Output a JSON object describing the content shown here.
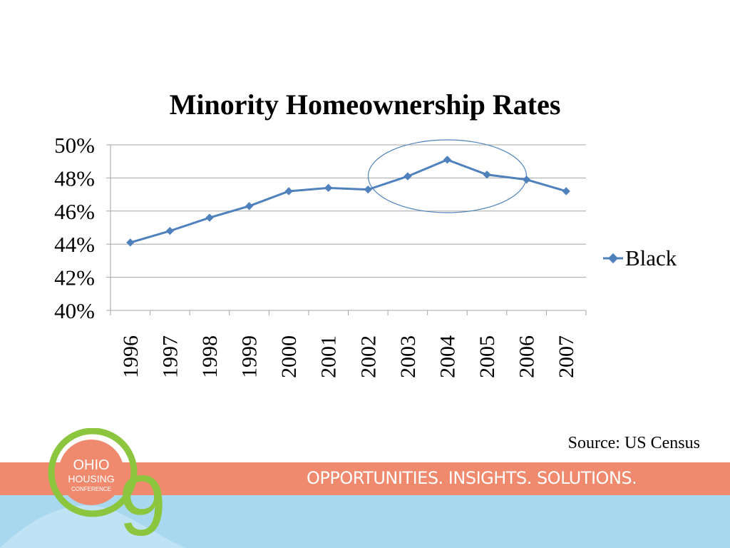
{
  "chart_data": {
    "type": "line",
    "title": "Minority Homeownership Rates",
    "categories": [
      "1996",
      "1997",
      "1998",
      "1999",
      "2000",
      "2001",
      "2002",
      "2003",
      "2004",
      "2005",
      "2006",
      "2007"
    ],
    "series": [
      {
        "name": "Black",
        "values": [
          44.1,
          44.8,
          45.6,
          46.3,
          47.2,
          47.4,
          47.3,
          48.1,
          49.1,
          48.2,
          47.9,
          47.2
        ]
      }
    ],
    "ylim": [
      40,
      50
    ],
    "yticks": [
      "40%",
      "42%",
      "44%",
      "46%",
      "48%",
      "50%"
    ],
    "grid": true,
    "legend_position": "right",
    "highlight_annotation": "ellipse around 2003–2005",
    "colors": {
      "series": "#4F81BD",
      "grid": "#A6A6A6",
      "ellipse": "#4F81BD"
    }
  },
  "source": "Source: US Census",
  "banner": {
    "tagline": "OPPORTUNITIES. INSIGHTS. SOLUTIONS.",
    "colors": {
      "band": "#F08A6E",
      "bottom": "#A7D8F0",
      "logo_green": "#8CC63F",
      "logo_circle": "#F08A6E"
    }
  },
  "logo": {
    "line1": "OHIO",
    "line2": "HOUSING",
    "line3": "CONFERENCE",
    "mark": "9"
  }
}
